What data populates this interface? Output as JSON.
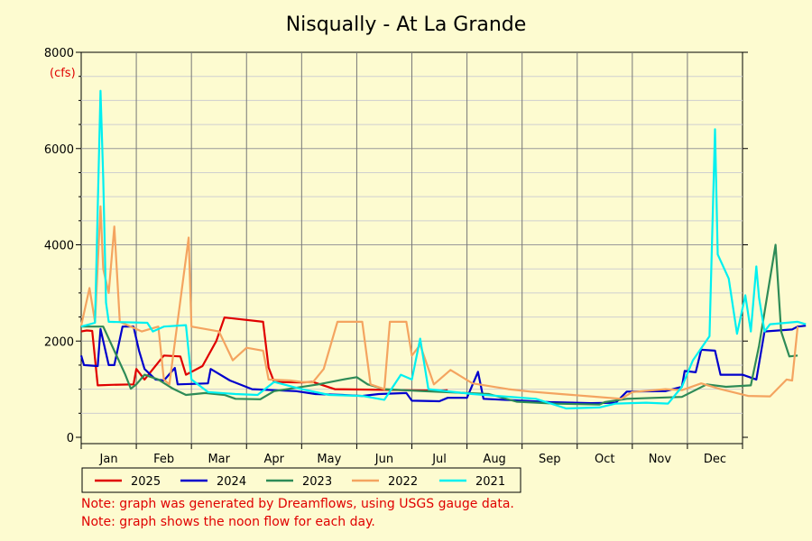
{
  "chart_data": {
    "type": "line",
    "title": "Nisqually - At La Grande",
    "unit_label": "(cfs)",
    "ylim": [
      0,
      8000
    ],
    "y_ticks": [
      0,
      2000,
      4000,
      6000,
      8000
    ],
    "x_ticks": [
      "Jan",
      "Feb",
      "Mar",
      "Apr",
      "May",
      "Jun",
      "Jul",
      "Aug",
      "Sep",
      "Oct",
      "Nov",
      "Dec"
    ],
    "grid": true,
    "legend_position": "bottom",
    "series": [
      {
        "name": "2025",
        "color": "#e00000",
        "points": [
          [
            0,
            2200
          ],
          [
            0.2,
            2220
          ],
          [
            0.4,
            2210
          ],
          [
            0.6,
            1080
          ],
          [
            1.1,
            1090
          ],
          [
            1.9,
            1100
          ],
          [
            2.0,
            1420
          ],
          [
            2.3,
            1200
          ],
          [
            3.0,
            1700
          ],
          [
            3.6,
            1680
          ],
          [
            3.8,
            1300
          ],
          [
            4.4,
            1480
          ],
          [
            4.9,
            2000
          ],
          [
            5.2,
            2490
          ],
          [
            6.6,
            2400
          ],
          [
            6.8,
            1450
          ],
          [
            7.0,
            1150
          ],
          [
            8.0,
            1140
          ],
          [
            8.4,
            1150
          ],
          [
            9.2,
            1000
          ],
          [
            13.0,
            970
          ],
          [
            13.3,
            980
          ]
        ]
      },
      {
        "name": "2024",
        "color": "#0000cc",
        "points": [
          [
            0,
            1700
          ],
          [
            0.1,
            1500
          ],
          [
            0.6,
            1480
          ],
          [
            0.7,
            2250
          ],
          [
            1.0,
            1500
          ],
          [
            1.2,
            1500
          ],
          [
            1.5,
            2300
          ],
          [
            1.9,
            2300
          ],
          [
            2.1,
            1800
          ],
          [
            2.3,
            1420
          ],
          [
            2.7,
            1200
          ],
          [
            3.0,
            1180
          ],
          [
            3.4,
            1440
          ],
          [
            3.5,
            1100
          ],
          [
            4.6,
            1120
          ],
          [
            4.7,
            1420
          ],
          [
            5.4,
            1180
          ],
          [
            6.2,
            1000
          ],
          [
            7.8,
            960
          ],
          [
            8.5,
            900
          ],
          [
            9.5,
            880
          ],
          [
            10.2,
            860
          ],
          [
            10.8,
            900
          ],
          [
            11.8,
            920
          ],
          [
            12.0,
            760
          ],
          [
            13.0,
            750
          ],
          [
            13.3,
            820
          ],
          [
            14.0,
            820
          ],
          [
            14.4,
            1360
          ],
          [
            14.6,
            800
          ],
          [
            16.0,
            760
          ],
          [
            17.0,
            730
          ],
          [
            18.5,
            710
          ],
          [
            19.4,
            720
          ],
          [
            19.8,
            950
          ],
          [
            21.2,
            960
          ],
          [
            21.8,
            1050
          ],
          [
            21.9,
            1380
          ],
          [
            22.3,
            1350
          ],
          [
            22.5,
            1820
          ],
          [
            23.0,
            1800
          ],
          [
            23.2,
            1300
          ],
          [
            24.0,
            1300
          ],
          [
            24.5,
            1200
          ],
          [
            24.8,
            2200
          ],
          [
            25.8,
            2240
          ],
          [
            26.0,
            2300
          ],
          [
            26.3,
            2320
          ]
        ]
      },
      {
        "name": "2023",
        "color": "#2e8b57",
        "points": [
          [
            0,
            2300
          ],
          [
            0.8,
            2300
          ],
          [
            1.6,
            1300
          ],
          [
            1.8,
            1010
          ],
          [
            2.0,
            1100
          ],
          [
            2.3,
            1300
          ],
          [
            2.8,
            1200
          ],
          [
            3.3,
            1020
          ],
          [
            3.8,
            880
          ],
          [
            4.5,
            920
          ],
          [
            5.2,
            880
          ],
          [
            5.6,
            800
          ],
          [
            6.5,
            790
          ],
          [
            7.0,
            960
          ],
          [
            8.6,
            1100
          ],
          [
            9.5,
            1200
          ],
          [
            10.0,
            1250
          ],
          [
            10.4,
            1100
          ],
          [
            11.0,
            1000
          ],
          [
            12.4,
            960
          ],
          [
            14.8,
            900
          ],
          [
            15.8,
            740
          ],
          [
            17.2,
            700
          ],
          [
            18.8,
            680
          ],
          [
            19.0,
            730
          ],
          [
            19.8,
            800
          ],
          [
            21.8,
            840
          ],
          [
            22.7,
            1100
          ],
          [
            23.4,
            1050
          ],
          [
            24.3,
            1080
          ],
          [
            24.6,
            1900
          ],
          [
            25.2,
            4000
          ],
          [
            25.4,
            2200
          ],
          [
            25.7,
            1680
          ],
          [
            26.0,
            1700
          ]
        ]
      },
      {
        "name": "2022",
        "color": "#f4a460",
        "points": [
          [
            0,
            2320
          ],
          [
            0.3,
            3100
          ],
          [
            0.5,
            2400
          ],
          [
            0.7,
            4800
          ],
          [
            0.8,
            3500
          ],
          [
            1.0,
            3000
          ],
          [
            1.2,
            4380
          ],
          [
            1.4,
            2400
          ],
          [
            1.8,
            2300
          ],
          [
            2.2,
            2200
          ],
          [
            2.8,
            2300
          ],
          [
            3.0,
            1200
          ],
          [
            3.2,
            1100
          ],
          [
            3.9,
            4150
          ],
          [
            4.0,
            2300
          ],
          [
            5.0,
            2200
          ],
          [
            5.5,
            1600
          ],
          [
            6.0,
            1860
          ],
          [
            6.6,
            1800
          ],
          [
            6.8,
            1200
          ],
          [
            7.6,
            1180
          ],
          [
            8.0,
            1150
          ],
          [
            8.4,
            1140
          ],
          [
            8.8,
            1420
          ],
          [
            9.3,
            2400
          ],
          [
            10.2,
            2400
          ],
          [
            10.5,
            1100
          ],
          [
            11.0,
            1000
          ],
          [
            11.2,
            2400
          ],
          [
            11.8,
            2400
          ],
          [
            12.0,
            1700
          ],
          [
            12.3,
            1920
          ],
          [
            12.8,
            1100
          ],
          [
            13.4,
            1400
          ],
          [
            14.2,
            1120
          ],
          [
            15.5,
            1000
          ],
          [
            16.3,
            950
          ],
          [
            17.4,
            900
          ],
          [
            18.5,
            850
          ],
          [
            19.6,
            800
          ],
          [
            20.0,
            940
          ],
          [
            21.2,
            1000
          ],
          [
            21.8,
            980
          ],
          [
            22.5,
            1120
          ],
          [
            23.2,
            1000
          ],
          [
            24.2,
            860
          ],
          [
            25.0,
            850
          ],
          [
            25.6,
            1200
          ],
          [
            25.8,
            1180
          ],
          [
            26.0,
            2300
          ]
        ]
      },
      {
        "name": "2021",
        "color": "#00f0f0",
        "points": [
          [
            0,
            2300
          ],
          [
            0.5,
            2380
          ],
          [
            0.7,
            7200
          ],
          [
            0.8,
            5400
          ],
          [
            0.9,
            2800
          ],
          [
            1.0,
            2400
          ],
          [
            2.4,
            2380
          ],
          [
            2.6,
            2200
          ],
          [
            3.0,
            2300
          ],
          [
            3.8,
            2330
          ],
          [
            4.0,
            1200
          ],
          [
            4.6,
            940
          ],
          [
            5.6,
            900
          ],
          [
            6.4,
            880
          ],
          [
            7.0,
            1150
          ],
          [
            8.0,
            1000
          ],
          [
            9.0,
            880
          ],
          [
            10.2,
            860
          ],
          [
            11.0,
            780
          ],
          [
            11.6,
            1300
          ],
          [
            12.0,
            1200
          ],
          [
            12.3,
            2050
          ],
          [
            12.6,
            1000
          ],
          [
            14.2,
            900
          ],
          [
            16.5,
            800
          ],
          [
            17.6,
            600
          ],
          [
            18.8,
            620
          ],
          [
            19.4,
            700
          ],
          [
            20.5,
            720
          ],
          [
            21.3,
            700
          ],
          [
            21.8,
            1050
          ],
          [
            22.2,
            1600
          ],
          [
            22.8,
            2100
          ],
          [
            23.0,
            6400
          ],
          [
            23.1,
            3800
          ],
          [
            23.5,
            3300
          ],
          [
            23.8,
            2150
          ],
          [
            24.1,
            2950
          ],
          [
            24.3,
            2200
          ],
          [
            24.5,
            3550
          ],
          [
            24.6,
            2900
          ],
          [
            24.8,
            2200
          ],
          [
            25.0,
            2350
          ],
          [
            26.0,
            2400
          ],
          [
            26.3,
            2350
          ]
        ]
      }
    ]
  },
  "notes": [
    "Note: graph was generated by Dreamflows, using USGS gauge data.",
    "Note: graph shows the noon flow for each day."
  ]
}
